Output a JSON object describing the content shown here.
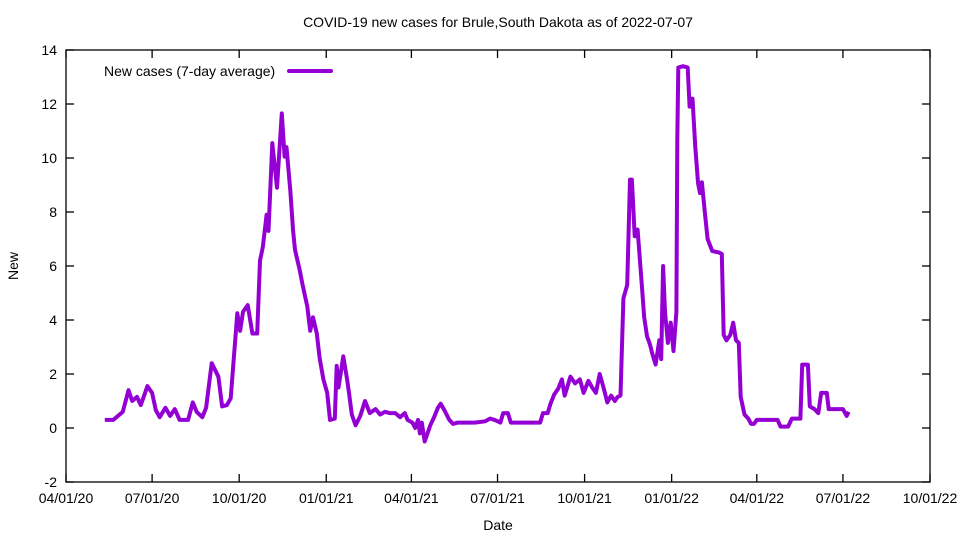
{
  "page": {
    "background": "#ffffff",
    "text_color": "#000000"
  },
  "chart_data": {
    "type": "line",
    "title": "COVID-19 new cases for Brule,South Dakota as of 2022-07-07",
    "xlabel": "Date",
    "ylabel": "New",
    "x_range": [
      "2020-04-01",
      "2022-10-01"
    ],
    "ylim": [
      -2,
      14
    ],
    "y_ticks": [
      -2,
      0,
      2,
      4,
      6,
      8,
      10,
      12,
      14
    ],
    "x_ticks": [
      {
        "label": "04/01/20",
        "date": "2020-04-01"
      },
      {
        "label": "07/01/20",
        "date": "2020-07-01"
      },
      {
        "label": "10/01/20",
        "date": "2020-10-01"
      },
      {
        "label": "01/01/21",
        "date": "2021-01-01"
      },
      {
        "label": "04/01/21",
        "date": "2021-04-01"
      },
      {
        "label": "07/01/21",
        "date": "2021-07-01"
      },
      {
        "label": "10/01/21",
        "date": "2021-10-01"
      },
      {
        "label": "01/01/22",
        "date": "2022-01-01"
      },
      {
        "label": "04/01/22",
        "date": "2022-04-01"
      },
      {
        "label": "07/01/22",
        "date": "2022-07-01"
      },
      {
        "label": "10/01/22",
        "date": "2022-10-01"
      }
    ],
    "grid": false,
    "legend_position": "top-left-inside",
    "axis_color": "#000000",
    "series": [
      {
        "name": "New cases (7-day average)",
        "color": "#9400D3",
        "line_width": 4,
        "points": [
          [
            "2020-05-12",
            0.3
          ],
          [
            "2020-05-21",
            0.3
          ],
          [
            "2020-05-26",
            0.45
          ],
          [
            "2020-05-31",
            0.6
          ],
          [
            "2020-06-06",
            1.4
          ],
          [
            "2020-06-10",
            1.0
          ],
          [
            "2020-06-15",
            1.15
          ],
          [
            "2020-06-19",
            0.85
          ],
          [
            "2020-06-26",
            1.55
          ],
          [
            "2020-07-01",
            1.3
          ],
          [
            "2020-07-05",
            0.65
          ],
          [
            "2020-07-09",
            0.4
          ],
          [
            "2020-07-15",
            0.75
          ],
          [
            "2020-07-20",
            0.45
          ],
          [
            "2020-07-25",
            0.7
          ],
          [
            "2020-07-30",
            0.3
          ],
          [
            "2020-08-08",
            0.3
          ],
          [
            "2020-08-13",
            0.95
          ],
          [
            "2020-08-17",
            0.6
          ],
          [
            "2020-08-23",
            0.4
          ],
          [
            "2020-08-27",
            0.75
          ],
          [
            "2020-09-02",
            2.4
          ],
          [
            "2020-09-09",
            1.9
          ],
          [
            "2020-09-13",
            0.8
          ],
          [
            "2020-09-18",
            0.85
          ],
          [
            "2020-09-22",
            1.1
          ],
          [
            "2020-09-29",
            4.25
          ],
          [
            "2020-10-02",
            3.6
          ],
          [
            "2020-10-05",
            4.3
          ],
          [
            "2020-10-10",
            4.55
          ],
          [
            "2020-10-15",
            3.5
          ],
          [
            "2020-10-20",
            3.5
          ],
          [
            "2020-10-23",
            6.2
          ],
          [
            "2020-10-26",
            6.7
          ],
          [
            "2020-10-30",
            7.9
          ],
          [
            "2020-11-01",
            7.3
          ],
          [
            "2020-11-05",
            10.55
          ],
          [
            "2020-11-10",
            8.9
          ],
          [
            "2020-11-15",
            11.65
          ],
          [
            "2020-11-18",
            10.05
          ],
          [
            "2020-11-20",
            10.4
          ],
          [
            "2020-11-24",
            8.8
          ],
          [
            "2020-11-27",
            7.3
          ],
          [
            "2020-11-29",
            6.6
          ],
          [
            "2020-12-04",
            5.85
          ],
          [
            "2020-12-07",
            5.3
          ],
          [
            "2020-12-12",
            4.5
          ],
          [
            "2020-12-15",
            3.6
          ],
          [
            "2020-12-18",
            4.1
          ],
          [
            "2020-12-22",
            3.5
          ],
          [
            "2020-12-25",
            2.6
          ],
          [
            "2020-12-29",
            1.8
          ],
          [
            "2021-01-02",
            1.3
          ],
          [
            "2021-01-05",
            0.3
          ],
          [
            "2021-01-10",
            0.35
          ],
          [
            "2021-01-12",
            2.3
          ],
          [
            "2021-01-14",
            1.5
          ],
          [
            "2021-01-19",
            2.65
          ],
          [
            "2021-01-23",
            1.8
          ],
          [
            "2021-01-25",
            1.3
          ],
          [
            "2021-01-28",
            0.5
          ],
          [
            "2021-02-01",
            0.1
          ],
          [
            "2021-02-06",
            0.45
          ],
          [
            "2021-02-11",
            1.0
          ],
          [
            "2021-02-16",
            0.55
          ],
          [
            "2021-02-22",
            0.7
          ],
          [
            "2021-02-27",
            0.5
          ],
          [
            "2021-03-04",
            0.6
          ],
          [
            "2021-03-09",
            0.55
          ],
          [
            "2021-03-15",
            0.55
          ],
          [
            "2021-03-20",
            0.4
          ],
          [
            "2021-03-25",
            0.55
          ],
          [
            "2021-03-28",
            0.3
          ],
          [
            "2021-04-02",
            0.2
          ],
          [
            "2021-04-05",
            0.0
          ],
          [
            "2021-04-08",
            0.3
          ],
          [
            "2021-04-10",
            -0.2
          ],
          [
            "2021-04-12",
            0.2
          ],
          [
            "2021-04-15",
            -0.5
          ],
          [
            "2021-04-21",
            0.1
          ],
          [
            "2021-04-25",
            0.4
          ],
          [
            "2021-04-29",
            0.75
          ],
          [
            "2021-05-02",
            0.9
          ],
          [
            "2021-05-06",
            0.65
          ],
          [
            "2021-05-11",
            0.3
          ],
          [
            "2021-05-15",
            0.15
          ],
          [
            "2021-05-20",
            0.2
          ],
          [
            "2021-05-28",
            0.2
          ],
          [
            "2021-06-07",
            0.2
          ],
          [
            "2021-06-18",
            0.25
          ],
          [
            "2021-06-23",
            0.35
          ],
          [
            "2021-06-28",
            0.3
          ],
          [
            "2021-07-04",
            0.2
          ],
          [
            "2021-07-07",
            0.55
          ],
          [
            "2021-07-12",
            0.55
          ],
          [
            "2021-07-15",
            0.2
          ],
          [
            "2021-07-25",
            0.2
          ],
          [
            "2021-08-04",
            0.2
          ],
          [
            "2021-08-15",
            0.2
          ],
          [
            "2021-08-18",
            0.55
          ],
          [
            "2021-08-23",
            0.55
          ],
          [
            "2021-08-26",
            0.9
          ],
          [
            "2021-08-30",
            1.25
          ],
          [
            "2021-09-03",
            1.45
          ],
          [
            "2021-09-07",
            1.8
          ],
          [
            "2021-09-10",
            1.2
          ],
          [
            "2021-09-16",
            1.9
          ],
          [
            "2021-09-21",
            1.65
          ],
          [
            "2021-09-26",
            1.8
          ],
          [
            "2021-09-30",
            1.3
          ],
          [
            "2021-10-05",
            1.75
          ],
          [
            "2021-10-09",
            1.5
          ],
          [
            "2021-10-13",
            1.3
          ],
          [
            "2021-10-17",
            2.0
          ],
          [
            "2021-10-21",
            1.5
          ],
          [
            "2021-10-25",
            0.95
          ],
          [
            "2021-10-29",
            1.2
          ],
          [
            "2021-11-02",
            1.0
          ],
          [
            "2021-11-05",
            1.15
          ],
          [
            "2021-11-08",
            1.2
          ],
          [
            "2021-11-11",
            4.8
          ],
          [
            "2021-11-15",
            5.3
          ],
          [
            "2021-11-18",
            9.2
          ],
          [
            "2021-11-20",
            9.2
          ],
          [
            "2021-11-23",
            7.1
          ],
          [
            "2021-11-26",
            7.35
          ],
          [
            "2021-11-30",
            5.5
          ],
          [
            "2021-12-03",
            4.1
          ],
          [
            "2021-12-06",
            3.4
          ],
          [
            "2021-12-09",
            3.1
          ],
          [
            "2021-12-12",
            2.7
          ],
          [
            "2021-12-15",
            2.35
          ],
          [
            "2021-12-19",
            3.25
          ],
          [
            "2021-12-21",
            2.55
          ],
          [
            "2021-12-23",
            6.0
          ],
          [
            "2021-12-25",
            4.3
          ],
          [
            "2021-12-28",
            3.15
          ],
          [
            "2021-12-31",
            3.9
          ],
          [
            "2022-01-03",
            2.85
          ],
          [
            "2022-01-06",
            4.3
          ],
          [
            "2022-01-07",
            10.7
          ],
          [
            "2022-01-08",
            13.35
          ],
          [
            "2022-01-13",
            13.4
          ],
          [
            "2022-01-18",
            13.35
          ],
          [
            "2022-01-20",
            11.9
          ],
          [
            "2022-01-23",
            12.2
          ],
          [
            "2022-01-26",
            10.4
          ],
          [
            "2022-01-29",
            9.05
          ],
          [
            "2022-01-31",
            8.7
          ],
          [
            "2022-02-02",
            9.1
          ],
          [
            "2022-02-05",
            8.0
          ],
          [
            "2022-02-08",
            7.0
          ],
          [
            "2022-02-13",
            6.55
          ],
          [
            "2022-02-20",
            6.5
          ],
          [
            "2022-02-23",
            6.45
          ],
          [
            "2022-02-25",
            3.45
          ],
          [
            "2022-02-28",
            3.25
          ],
          [
            "2022-03-04",
            3.45
          ],
          [
            "2022-03-07",
            3.9
          ],
          [
            "2022-03-10",
            3.25
          ],
          [
            "2022-03-13",
            3.15
          ],
          [
            "2022-03-15",
            1.15
          ],
          [
            "2022-03-19",
            0.5
          ],
          [
            "2022-03-23",
            0.35
          ],
          [
            "2022-03-26",
            0.15
          ],
          [
            "2022-03-29",
            0.15
          ],
          [
            "2022-04-01",
            0.3
          ],
          [
            "2022-04-06",
            0.3
          ],
          [
            "2022-04-15",
            0.3
          ],
          [
            "2022-04-23",
            0.3
          ],
          [
            "2022-04-26",
            0.05
          ],
          [
            "2022-05-04",
            0.05
          ],
          [
            "2022-05-08",
            0.35
          ],
          [
            "2022-05-13",
            0.35
          ],
          [
            "2022-05-17",
            0.35
          ],
          [
            "2022-05-19",
            2.35
          ],
          [
            "2022-05-25",
            2.35
          ],
          [
            "2022-05-27",
            0.8
          ],
          [
            "2022-06-01",
            0.7
          ],
          [
            "2022-06-05",
            0.55
          ],
          [
            "2022-06-08",
            1.3
          ],
          [
            "2022-06-14",
            1.3
          ],
          [
            "2022-06-16",
            0.7
          ],
          [
            "2022-06-24",
            0.7
          ],
          [
            "2022-07-01",
            0.7
          ],
          [
            "2022-07-05",
            0.45
          ],
          [
            "2022-07-07",
            0.6
          ]
        ]
      }
    ]
  }
}
